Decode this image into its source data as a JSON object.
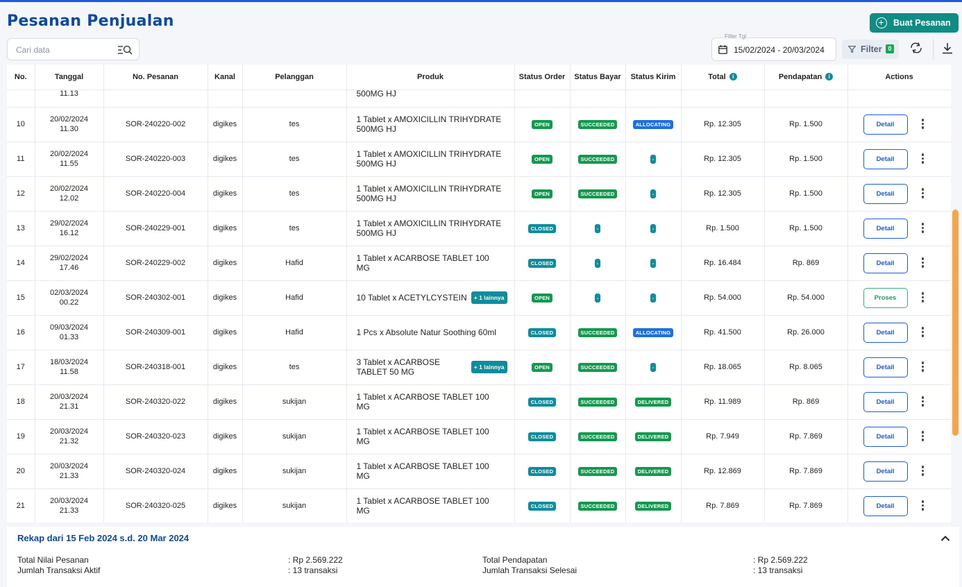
{
  "page": {
    "title": "Pesanan Penjualan",
    "new_order_label": "Buat Pesanan"
  },
  "search": {
    "placeholder": "Cari data"
  },
  "date_filter": {
    "caption": "Filter Tgl.",
    "value": "15/02/2024 - 20/03/2024"
  },
  "filter": {
    "label": "Filter",
    "count": "0"
  },
  "icons": {
    "plus": "plus-circle-icon",
    "search": "search-filter-icon",
    "calendar": "calendar-icon",
    "filter": "funnel-icon",
    "reset": "reset-icon",
    "download": "download-icon",
    "info": "info-icon",
    "more": "kebab-menu-icon",
    "collapse": "chevron-up-icon"
  },
  "colors": {
    "brand": "#0d4a9c",
    "primary_button": "#0f8d85",
    "scrollbar": "#f5a64a",
    "success": "#149a4f",
    "allocating": "#1e6fe0"
  },
  "table": {
    "headers": [
      "No.",
      "Tanggal",
      "No. Pesanan",
      "Kanal",
      "Pelanggan",
      "Produk",
      "Status Order",
      "Status Bayar",
      "Status Kirim",
      "Total",
      "Pendapatan",
      "Actions"
    ],
    "partial_row": {
      "time": "11.13",
      "product": "500MG HJ"
    },
    "rows": [
      {
        "no": "10",
        "date": "20/02/2024",
        "time": "11.30",
        "order_no": "SOR-240220-002",
        "channel": "digikes",
        "customer": "tes",
        "product": "1 Tablet x AMOXICILLIN TRIHYDRATE 500MG HJ",
        "more": "",
        "status_order": "OPEN",
        "status_bayar": "SUCCEEDED",
        "status_kirim": "ALLOCATING",
        "total": "Rp. 12.305",
        "pendapatan": "Rp. 1.500",
        "action": "Detail"
      },
      {
        "no": "11",
        "date": "20/02/2024",
        "time": "11.55",
        "order_no": "SOR-240220-003",
        "channel": "digikes",
        "customer": "tes",
        "product": "1 Tablet x AMOXICILLIN TRIHYDRATE 500MG HJ",
        "more": "",
        "status_order": "OPEN",
        "status_bayar": "SUCCEEDED",
        "status_kirim": "-",
        "total": "Rp. 12.305",
        "pendapatan": "Rp. 1.500",
        "action": "Detail"
      },
      {
        "no": "12",
        "date": "20/02/2024",
        "time": "12.02",
        "order_no": "SOR-240220-004",
        "channel": "digikes",
        "customer": "tes",
        "product": "1 Tablet x AMOXICILLIN TRIHYDRATE 500MG HJ",
        "more": "",
        "status_order": "OPEN",
        "status_bayar": "SUCCEEDED",
        "status_kirim": "-",
        "total": "Rp. 12.305",
        "pendapatan": "Rp. 1.500",
        "action": "Detail"
      },
      {
        "no": "13",
        "date": "29/02/2024",
        "time": "16.12",
        "order_no": "SOR-240229-001",
        "channel": "digikes",
        "customer": "tes",
        "product": "1 Tablet x AMOXICILLIN TRIHYDRATE 500MG HJ",
        "more": "",
        "status_order": "CLOSED",
        "status_bayar": "-",
        "status_kirim": "-",
        "total": "Rp. 1.500",
        "pendapatan": "Rp. 1.500",
        "action": "Detail"
      },
      {
        "no": "14",
        "date": "29/02/2024",
        "time": "17.46",
        "order_no": "SOR-240229-002",
        "channel": "digikes",
        "customer": "Hafid",
        "product": "1 Tablet x ACARBOSE TABLET 100 MG",
        "more": "",
        "status_order": "CLOSED",
        "status_bayar": "-",
        "status_kirim": "-",
        "total": "Rp. 16.484",
        "pendapatan": "Rp. 869",
        "action": "Detail"
      },
      {
        "no": "15",
        "date": "02/03/2024",
        "time": "00.22",
        "order_no": "SOR-240302-001",
        "channel": "digikes",
        "customer": "Hafid",
        "product": "10 Tablet x ACETYLCYSTEIN",
        "more": "+ 1 lainnya",
        "status_order": "OPEN",
        "status_bayar": "-",
        "status_kirim": "-",
        "total": "Rp. 54.000",
        "pendapatan": "Rp. 54.000",
        "action": "Proses"
      },
      {
        "no": "16",
        "date": "09/03/2024",
        "time": "01.33",
        "order_no": "SOR-240309-001",
        "channel": "digikes",
        "customer": "Hafid",
        "product": "1 Pcs x Absolute Natur Soothing 60ml",
        "more": "",
        "status_order": "CLOSED",
        "status_bayar": "SUCCEEDED",
        "status_kirim": "ALLOCATING",
        "total": "Rp. 41.500",
        "pendapatan": "Rp. 26.000",
        "action": "Detail"
      },
      {
        "no": "17",
        "date": "18/03/2024",
        "time": "11.58",
        "order_no": "SOR-240318-001",
        "channel": "digikes",
        "customer": "tes",
        "product": "3 Tablet x ACARBOSE TABLET 50 MG",
        "more": "+ 1 lainnya",
        "status_order": "OPEN",
        "status_bayar": "SUCCEEDED",
        "status_kirim": "-",
        "total": "Rp. 18.065",
        "pendapatan": "Rp. 8.065",
        "action": "Detail"
      },
      {
        "no": "18",
        "date": "20/03/2024",
        "time": "21.31",
        "order_no": "SOR-240320-022",
        "channel": "digikes",
        "customer": "sukijan",
        "product": "1 Tablet x ACARBOSE TABLET 100 MG",
        "more": "",
        "status_order": "CLOSED",
        "status_bayar": "SUCCEEDED",
        "status_kirim": "DELIVERED",
        "total": "Rp. 11.989",
        "pendapatan": "Rp. 869",
        "action": "Detail"
      },
      {
        "no": "19",
        "date": "20/03/2024",
        "time": "21.32",
        "order_no": "SOR-240320-023",
        "channel": "digikes",
        "customer": "sukijan",
        "product": "1 Tablet x ACARBOSE TABLET 100 MG",
        "more": "",
        "status_order": "CLOSED",
        "status_bayar": "SUCCEEDED",
        "status_kirim": "DELIVERED",
        "total": "Rp. 7.949",
        "pendapatan": "Rp. 7.869",
        "action": "Detail"
      },
      {
        "no": "20",
        "date": "20/03/2024",
        "time": "21.33",
        "order_no": "SOR-240320-024",
        "channel": "digikes",
        "customer": "sukijan",
        "product": "1 Tablet x ACARBOSE TABLET 100 MG",
        "more": "",
        "status_order": "CLOSED",
        "status_bayar": "SUCCEEDED",
        "status_kirim": "DELIVERED",
        "total": "Rp. 12.869",
        "pendapatan": "Rp. 7.869",
        "action": "Detail"
      },
      {
        "no": "21",
        "date": "20/03/2024",
        "time": "21.33",
        "order_no": "SOR-240320-025",
        "channel": "digikes",
        "customer": "sukijan",
        "product": "1 Tablet x ACARBOSE TABLET 100 MG",
        "more": "",
        "status_order": "CLOSED",
        "status_bayar": "SUCCEEDED",
        "status_kirim": "DELIVERED",
        "total": "Rp. 7.869",
        "pendapatan": "Rp. 7.869",
        "action": "Detail"
      }
    ]
  },
  "recap": {
    "title": "Rekap dari 15 Feb 2024 s.d. 20 Mar 2024",
    "total_nilai_label": "Total Nilai Pesanan",
    "total_nilai_value": ": Rp 2.569.222",
    "jumlah_aktif_label": "Jumlah Transaksi Aktif",
    "jumlah_aktif_value": ": 13 transaksi",
    "total_pendapatan_label": "Total Pendapatan",
    "total_pendapatan_value": ": Rp 2.569.222",
    "jumlah_selesai_label": "Jumlah Transaksi Selesai",
    "jumlah_selesai_value": ": 13 transaksi"
  }
}
